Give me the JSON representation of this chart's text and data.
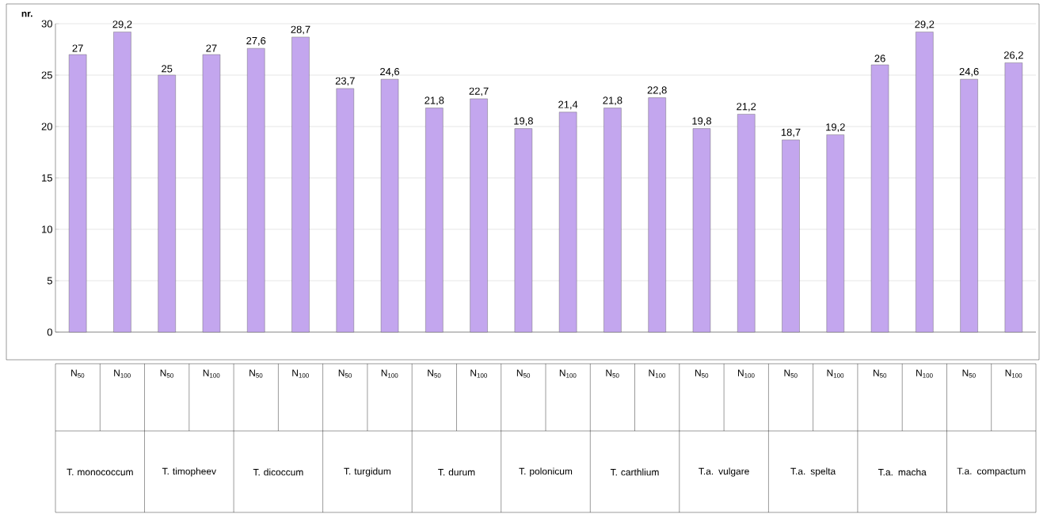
{
  "chart_data": {
    "type": "bar",
    "ylabel": "**nr.**",
    "categories": [
      "N$_{50}$",
      "N$_{100}$",
      "N$_{50}$",
      "N$_{100}$",
      "N$_{50}$",
      "N$_{100}$",
      "N$_{50}$",
      "N$_{100}$",
      "N$_{50}$",
      "N$_{100}$",
      "N$_{50}$",
      "N$_{100}$",
      "N$_{50}$",
      "N$_{100}$",
      "N$_{50}$",
      "N$_{100}$",
      "N$_{50}$",
      "N$_{100}$",
      "N$_{50}$",
      "N$_{100}$",
      "N$_{50}$",
      "N$_{100}$"
    ],
    "values": [
      27,
      29.2,
      25,
      27,
      27.6,
      28.7,
      23.7,
      24.6,
      21.8,
      22.7,
      19.8,
      21.4,
      21.8,
      22.8,
      19.8,
      21.2,
      18.7,
      19.2,
      26,
      29.2,
      24.6,
      26.2
    ],
    "value_labels": [
      "27",
      "29,2",
      "25",
      "27",
      "27,6",
      "28,7",
      "23,7",
      "24,6",
      "21,8",
      "22,7",
      "19,8",
      "21,4",
      "21,8",
      "22,8",
      "19,8",
      "21,2",
      "18,7",
      "19,2",
      "26",
      "29,2",
      "24,6",
      "26,2"
    ],
    "color": "#c3a6ee",
    "ylim": [
      0,
      30
    ],
    "yticks": [
      0,
      5,
      10,
      15,
      20,
      25,
      30
    ],
    "grid": "y",
    "annotations": [
      "T. monococcum",
      "T. timopheev",
      "T. dicoccum",
      "T. turgidum",
      "T. durum",
      "T. polonicum",
      "T. carthlium",
      "T.a. vulgare",
      "T.a. spelta",
      "T.a. macha",
      "T.a. compactum"
    ]
  }
}
